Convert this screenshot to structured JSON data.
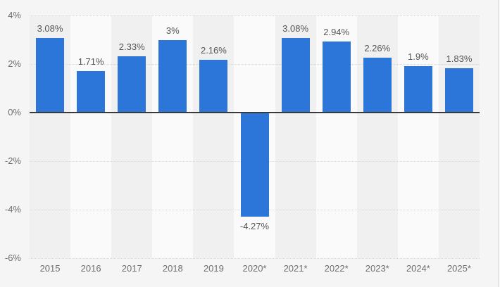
{
  "chart_data": {
    "type": "bar",
    "title": "",
    "xlabel": "",
    "ylabel": "",
    "unit": "%",
    "legend": "none",
    "grid": "horizontal-dotted",
    "ylim": [
      -6,
      4
    ],
    "categories": [
      "2015",
      "2016",
      "2017",
      "2018",
      "2019",
      "2020*",
      "2021*",
      "2022*",
      "2023*",
      "2024*",
      "2025*"
    ],
    "values": [
      3.08,
      1.71,
      2.33,
      3,
      2.16,
      -4.27,
      3.08,
      2.94,
      2.26,
      1.9,
      1.83
    ],
    "value_labels": [
      "3.08%",
      "1.71%",
      "2.33%",
      "3%",
      "2.16%",
      "-4.27%",
      "3.08%",
      "2.94%",
      "2.26%",
      "1.9%",
      "1.83%"
    ],
    "y_ticks": [
      {
        "value": 4,
        "label": "4%"
      },
      {
        "value": 2,
        "label": "2%"
      },
      {
        "value": 0,
        "label": "0%"
      },
      {
        "value": -2,
        "label": "-2%"
      },
      {
        "value": -4,
        "label": "-4%"
      },
      {
        "value": -6,
        "label": "-6%"
      }
    ],
    "colors": {
      "bar": "#2b76d8",
      "background": "#f5f5f6",
      "band_shaded": "#f0f0f1",
      "band_plain": "#fafafa",
      "zero_line": "#3a3a3a",
      "gridline": "#d8d8d8",
      "axis_label": "#6e6e6e",
      "value_label": "#565656",
      "widget_border": "#dedede"
    }
  }
}
